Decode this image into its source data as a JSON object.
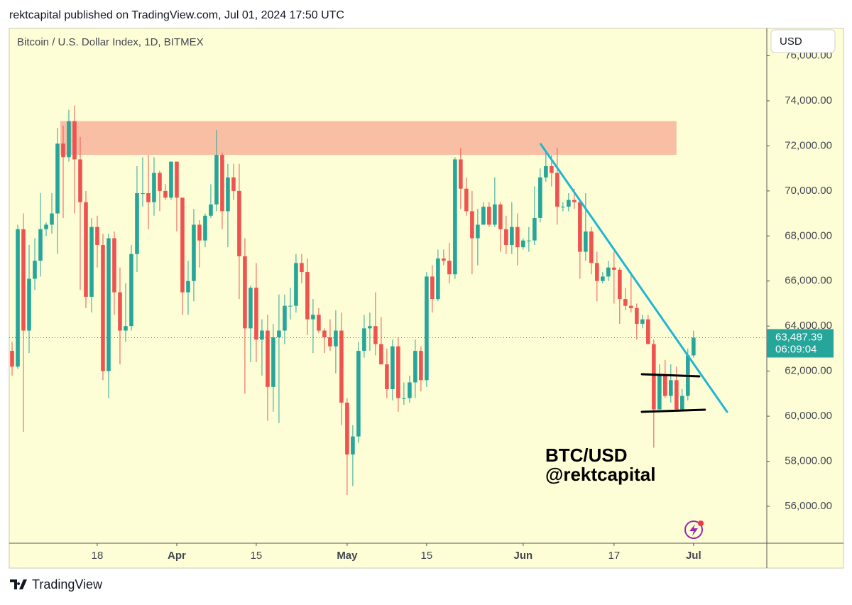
{
  "publisher_line": "rektcapital published on TradingView.com, Jul 01, 2024 17:50 UTC",
  "brand": "TradingView",
  "chart_data": {
    "type": "candlestick",
    "title": "Bitcoin / U.S. Dollar Index, 1D, BITMEX",
    "currency": "USD",
    "annotations": [
      "BTC/USD",
      "@rektcapital"
    ],
    "up_color": "#26a69a",
    "down_color": "#ef5350",
    "grid": false,
    "xlim": [
      -0.5,
      132.9
    ],
    "xticks": [
      {
        "value": 15,
        "label": "18"
      },
      {
        "value": 29,
        "label": "Apr"
      },
      {
        "value": 43,
        "label": "15"
      },
      {
        "value": 59,
        "label": "May"
      },
      {
        "value": 73,
        "label": "15"
      },
      {
        "value": 90,
        "label": "Jun"
      },
      {
        "value": 106,
        "label": "17"
      },
      {
        "value": 120,
        "label": "Jul"
      }
    ],
    "ylim": [
      54360,
      77215
    ],
    "yticks": [
      {
        "value": 56000,
        "label": "56,000.00"
      },
      {
        "value": 58000,
        "label": "58,000.00"
      },
      {
        "value": 60000,
        "label": "60,000.00"
      },
      {
        "value": 62000,
        "label": "62,000.00"
      },
      {
        "value": 64000,
        "label": "64,000.00"
      },
      {
        "value": 66000,
        "label": "66,000.00"
      },
      {
        "value": 68000,
        "label": "68,000.00"
      },
      {
        "value": 70000,
        "label": "70,000.00"
      },
      {
        "value": 72000,
        "label": "72,000.00"
      },
      {
        "value": 74000,
        "label": "74,000.00"
      },
      {
        "value": 76000,
        "label": "76,000.00"
      }
    ],
    "open": [
      62900,
      62200,
      68300,
      63800,
      66100,
      66900,
      68300,
      68500,
      69000,
      72100,
      71500,
      73100,
      71400,
      69500,
      65300,
      68400,
      67600,
      62000,
      67900,
      65500,
      63800,
      64000,
      67200,
      69900,
      69900,
      69500,
      70800,
      70000,
      69700,
      71300,
      69700,
      65500,
      66000,
      68500,
      67800,
      68900,
      69400,
      71600,
      69100,
      70600,
      70000,
      67100,
      63900,
      65700,
      63400,
      63800,
      61300,
      63500,
      63800,
      64900,
      64900,
      66800,
      66400,
      64300,
      64500,
      63800,
      63500,
      63100,
      63800,
      60600,
      58300,
      59100,
      62900,
      63900,
      64000,
      63200,
      62300,
      61200,
      63100,
      60800,
      60800,
      61500,
      62900,
      61600,
      66200,
      65200,
      67000,
      66900,
      66300,
      71400,
      70100,
      69100,
      67900,
      68500,
      69300,
      68500,
      69400,
      68300,
      67600,
      68400,
      67500,
      67800,
      67800,
      68800,
      70600,
      71100,
      70800,
      69300,
      69300,
      69600,
      69500,
      67300,
      68200,
      66800,
      66000,
      66200,
      66600,
      66500,
      65200,
      64900,
      64800,
      64100,
      64300,
      63200,
      60300,
      61800,
      60900,
      61600,
      60300,
      60900,
      62700
    ],
    "high": [
      63300,
      68500,
      69000,
      67600,
      67900,
      69900,
      68600,
      69900,
      72800,
      72900,
      73600,
      73800,
      72400,
      70000,
      68800,
      68900,
      68100,
      68100,
      68200,
      66600,
      65900,
      67600,
      71100,
      71500,
      71600,
      71500,
      70900,
      70300,
      71300,
      71300,
      69700,
      66900,
      69200,
      68700,
      69000,
      70300,
      72700,
      71700,
      71200,
      71200,
      71200,
      67900,
      65800,
      66800,
      64300,
      64500,
      64100,
      65400,
      65400,
      65700,
      67200,
      67200,
      67000,
      65200,
      64800,
      63900,
      64300,
      64700,
      64600,
      60800,
      59600,
      63300,
      64500,
      64600,
      65500,
      64400,
      63000,
      63400,
      63500,
      61500,
      61800,
      63400,
      63100,
      66400,
      66700,
      67400,
      67400,
      67700,
      71500,
      71900,
      70600,
      70000,
      69200,
      69500,
      69500,
      70600,
      69500,
      68900,
      69500,
      69000,
      67900,
      68400,
      70200,
      71000,
      71700,
      71600,
      71900,
      69500,
      69900,
      70100,
      69500,
      69900,
      68400,
      67300,
      66400,
      66900,
      67300,
      66600,
      65700,
      66400,
      65000,
      64500,
      64500,
      63400,
      62300,
      62500,
      62300,
      62200,
      61200,
      63000,
      63800
    ],
    "low": [
      61800,
      62100,
      59300,
      62800,
      65600,
      66200,
      68000,
      68100,
      67200,
      68800,
      71300,
      69000,
      65600,
      64800,
      64600,
      66600,
      61600,
      60800,
      64500,
      62300,
      63300,
      63800,
      66400,
      69300,
      68300,
      68900,
      69100,
      69600,
      69600,
      68200,
      64500,
      64500,
      65100,
      66600,
      67500,
      68800,
      69100,
      68300,
      67500,
      69600,
      65200,
      61000,
      62400,
      62400,
      61800,
      59800,
      60200,
      59700,
      63200,
      64300,
      64600,
      65900,
      63600,
      62800,
      63700,
      62800,
      62900,
      61900,
      59600,
      56500,
      56900,
      58800,
      62600,
      62900,
      62700,
      62300,
      60800,
      60700,
      60200,
      60500,
      60600,
      60800,
      61100,
      61300,
      64600,
      65100,
      66700,
      65900,
      66100,
      69200,
      68900,
      66300,
      66700,
      68500,
      68400,
      68400,
      67300,
      67200,
      67200,
      66700,
      67400,
      67300,
      67600,
      68600,
      70400,
      70200,
      68500,
      69100,
      69100,
      69200,
      66100,
      66900,
      66300,
      65100,
      65900,
      66000,
      65000,
      64100,
      64700,
      64600,
      63400,
      63900,
      63200,
      58600,
      60300,
      60800,
      60600,
      60200,
      60300,
      60700,
      62600
    ],
    "close": [
      62200,
      68300,
      63800,
      66100,
      66900,
      68300,
      68500,
      69000,
      72100,
      71500,
      73100,
      71400,
      69500,
      65300,
      68400,
      67600,
      62000,
      67900,
      65500,
      63800,
      64000,
      67200,
      69900,
      69900,
      69500,
      70800,
      70000,
      69700,
      71300,
      69700,
      65500,
      66000,
      68500,
      67800,
      68900,
      69400,
      71600,
      69100,
      70600,
      70000,
      67100,
      63900,
      65700,
      63400,
      63800,
      61300,
      63500,
      63800,
      64900,
      64900,
      66800,
      66400,
      64300,
      64500,
      63800,
      63500,
      63100,
      63800,
      60600,
      58300,
      59100,
      62900,
      63900,
      64000,
      63200,
      62300,
      61200,
      63100,
      60800,
      60800,
      61500,
      62900,
      61600,
      66200,
      65200,
      67000,
      66900,
      66300,
      71400,
      70100,
      69100,
      67900,
      68500,
      69300,
      68500,
      69400,
      68300,
      67600,
      68400,
      67500,
      67800,
      67800,
      68800,
      70600,
      71100,
      70800,
      69300,
      69300,
      69600,
      69500,
      67300,
      68200,
      66800,
      66000,
      66200,
      66600,
      66500,
      65200,
      64900,
      64800,
      64100,
      64300,
      63200,
      60300,
      61800,
      60900,
      61600,
      60300,
      60900,
      62700,
      63487.39
    ],
    "last_price": {
      "value": 63487.39,
      "label": "63,487.39"
    },
    "countdown": "06:09:04",
    "resistance_zone": {
      "color": "#f9bfa5",
      "x": [
        8.5,
        117
      ],
      "y": [
        71600,
        73100
      ]
    },
    "trendline": {
      "color": "#1fb6d4",
      "x": [
        93.1,
        125.9
      ],
      "y": [
        72077,
        60193
      ]
    },
    "channel": {
      "color": "#000000",
      "upper": {
        "x": [
          110.9,
          121
        ],
        "y": [
          61863,
          61768
        ]
      },
      "lower": {
        "x": [
          110.9,
          122
        ],
        "y": [
          60192,
          60287
        ]
      }
    }
  }
}
